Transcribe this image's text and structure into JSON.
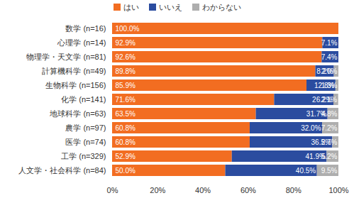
{
  "chart_data": {
    "type": "bar",
    "orientation": "horizontal",
    "stacked": true,
    "data_labels": true,
    "grid": false,
    "legend": "top",
    "categories": [
      "数学 (n=16)",
      "心理学 (n=14)",
      "物理学・天文学 (n=81)",
      "計算機科学 (n=49)",
      "生物科学 (n=156)",
      "化学 (n=141)",
      "地球科学 (n=63)",
      "農学 (n=97)",
      "医学 (n=74)",
      "工学 (n=329)",
      "人文学・社会科学 (n=84)"
    ],
    "series": [
      {
        "name": "はい",
        "color": "#f26d21",
        "values": [
          100.0,
          92.9,
          92.6,
          89.8,
          85.9,
          71.6,
          63.5,
          60.8,
          60.8,
          52.9,
          50.0
        ],
        "value_labels": [
          "100.0%",
          "92.9%",
          "92.6%",
          "89.8%",
          "85.9%",
          "71.6%",
          "63.5%",
          "60.8%",
          "60.8%",
          "52.9%",
          "50.0%"
        ]
      },
      {
        "name": "いいえ",
        "color": "#2b4c9f",
        "values": [
          0,
          7.1,
          7.4,
          8.2,
          12.8,
          26.2,
          31.7,
          32.0,
          36.5,
          41.9,
          40.5
        ],
        "value_labels": [
          null,
          "7.1%",
          "7.4%",
          "8.2%",
          "12.8%",
          "26.2%",
          "31.7%",
          "32.0%",
          "36.5%",
          "41.9%",
          "40.5%"
        ]
      },
      {
        "name": "わからない",
        "color": "#aeaeae",
        "values": [
          0,
          0,
          0,
          2.0,
          1.3,
          2.1,
          4.8,
          7.2,
          2.7,
          5.2,
          9.5
        ],
        "value_labels": [
          null,
          null,
          null,
          "2.0%",
          "1.3%",
          "2.1%",
          "4.8%",
          "7.2%",
          "2.7%",
          "5.2%",
          "9.5%"
        ]
      }
    ],
    "xlim": [
      0,
      100
    ],
    "xticks": [
      {
        "value": 0,
        "label": "0%"
      },
      {
        "value": 20,
        "label": "20%"
      },
      {
        "value": 40,
        "label": "40%"
      },
      {
        "value": 60,
        "label": "60%"
      },
      {
        "value": 80,
        "label": "80%"
      },
      {
        "value": 100,
        "label": "100%"
      }
    ]
  }
}
